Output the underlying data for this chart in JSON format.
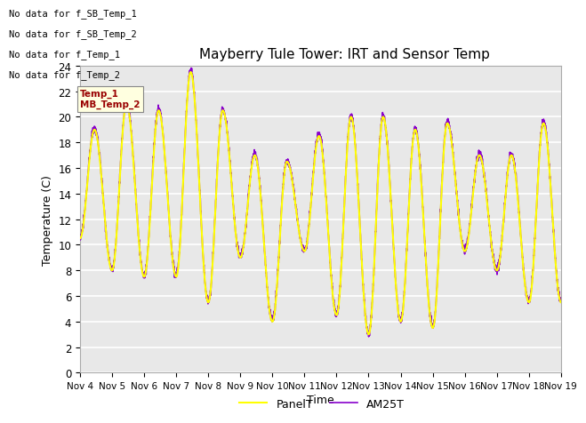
{
  "title": "Mayberry Tule Tower: IRT and Sensor Temp",
  "xlabel": "Time",
  "ylabel": "Temperature (C)",
  "ylim": [
    0,
    24
  ],
  "yticks": [
    0,
    2,
    4,
    6,
    8,
    10,
    12,
    14,
    16,
    18,
    20,
    22,
    24
  ],
  "xtick_labels": [
    "Nov 4",
    "Nov 5",
    "Nov 6",
    "Nov 7",
    "Nov 8",
    "Nov 9",
    "Nov 10",
    "Nov 11",
    "Nov 12",
    "Nov 13",
    "Nov 14",
    "Nov 15",
    "Nov 16",
    "Nov 17",
    "Nov 18",
    "Nov 19"
  ],
  "panel_color": "#ffff00",
  "am25_color": "#8800cc",
  "legend_labels": [
    "PanelT",
    "AM25T"
  ],
  "no_data_texts": [
    "No data for f_SB_Temp_1",
    "No data for f_SB_Temp_2",
    "No data for f_Temp_1",
    "No data for f_Temp_2"
  ],
  "bg_color": "#e8e8e8",
  "grid_color": "white",
  "fig_bg": "white",
  "daily_peaks": [
    19.0,
    21.0,
    20.5,
    23.5,
    20.5,
    17.0,
    16.5,
    18.5,
    20.0,
    20.0,
    19.0,
    19.5,
    17.0,
    17.0,
    19.5,
    7.0
  ],
  "daily_troughs": [
    10.5,
    8.0,
    7.5,
    7.5,
    5.5,
    9.0,
    4.0,
    9.5,
    4.5,
    3.0,
    4.0,
    3.5,
    9.5,
    8.0,
    5.5,
    5.5
  ]
}
